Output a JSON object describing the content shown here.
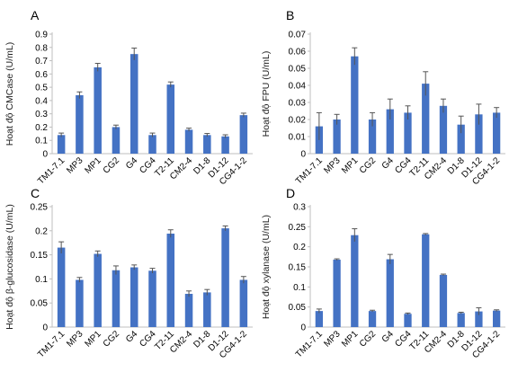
{
  "chart_data": [
    {
      "panel_label": "A",
      "type": "bar",
      "ylabel": "Hoạt độ CMCase (U/mL)",
      "ylim": [
        0,
        0.9
      ],
      "yticks": [
        "0",
        "0.1",
        "0.2",
        "0.3",
        "0.4",
        "0.5",
        "0.6",
        "0.7",
        "0.8",
        "0.9"
      ],
      "categories": [
        "TM1-7.1",
        "MP3",
        "MP1",
        "CG2",
        "G4",
        "CG4",
        "T2-11",
        "CM2-4",
        "D1-8",
        "D1-12",
        "CG4-1-2"
      ],
      "values": [
        0.14,
        0.44,
        0.65,
        0.2,
        0.75,
        0.14,
        0.52,
        0.18,
        0.14,
        0.13,
        0.29
      ],
      "errors": [
        0.015,
        0.025,
        0.03,
        0.015,
        0.045,
        0.015,
        0.02,
        0.012,
        0.012,
        0.012,
        0.015
      ],
      "color": "#4472c4"
    },
    {
      "panel_label": "B",
      "type": "bar",
      "ylabel": "Hoạt độ FPU (U/mL)",
      "ylim": [
        0,
        0.07
      ],
      "yticks": [
        "0",
        "0.01",
        "0.02",
        "0.03",
        "0.04",
        "0.05",
        "0.06",
        "0.07"
      ],
      "categories": [
        "TM1-7.1",
        "MP3",
        "MP1",
        "CG2",
        "G4",
        "CG4",
        "T2-11",
        "CM2-4",
        "D1-8",
        "D1-12",
        "CG4-1-2"
      ],
      "values": [
        0.016,
        0.02,
        0.057,
        0.02,
        0.026,
        0.024,
        0.041,
        0.028,
        0.017,
        0.023,
        0.024
      ],
      "errors": [
        0.008,
        0.003,
        0.005,
        0.004,
        0.006,
        0.004,
        0.007,
        0.004,
        0.005,
        0.006,
        0.003
      ],
      "color": "#4472c4"
    },
    {
      "panel_label": "C",
      "type": "bar",
      "ylabel": "Hoạt độ β-glucosidase (U/mL)",
      "ylim": [
        0,
        0.25
      ],
      "yticks": [
        "0",
        "0.05",
        "0.1",
        "0.15",
        "0.2",
        "0.25"
      ],
      "categories": [
        "TM1-7.1",
        "MP3",
        "MP1",
        "CG2",
        "G4",
        "CG4",
        "T2-11",
        "CM2-4",
        "D1-8",
        "D1-12",
        "CG4-1-2"
      ],
      "values": [
        0.165,
        0.098,
        0.152,
        0.118,
        0.124,
        0.117,
        0.194,
        0.069,
        0.072,
        0.205,
        0.098
      ],
      "errors": [
        0.012,
        0.005,
        0.006,
        0.009,
        0.005,
        0.005,
        0.008,
        0.006,
        0.006,
        0.005,
        0.007
      ],
      "color": "#4472c4"
    },
    {
      "panel_label": "D",
      "type": "bar",
      "ylabel": "Hoạt độ xylanase (U/mL)",
      "ylim": [
        0,
        0.3
      ],
      "yticks": [
        "0",
        "0.05",
        "0.1",
        "0.15",
        "0.2",
        "0.25",
        "0.3"
      ],
      "categories": [
        "TM1-7.1",
        "MP3",
        "MP1",
        "CG2",
        "G4",
        "CG4",
        "T2-11",
        "CM2-4",
        "D1-8",
        "D1-12",
        "CG4-1-2"
      ],
      "values": [
        0.04,
        0.168,
        0.229,
        0.04,
        0.169,
        0.033,
        0.231,
        0.13,
        0.035,
        0.039,
        0.041
      ],
      "errors": [
        0.005,
        0.002,
        0.016,
        0.002,
        0.012,
        0.002,
        0.002,
        0.002,
        0.002,
        0.009,
        0.002
      ],
      "color": "#4472c4"
    }
  ]
}
